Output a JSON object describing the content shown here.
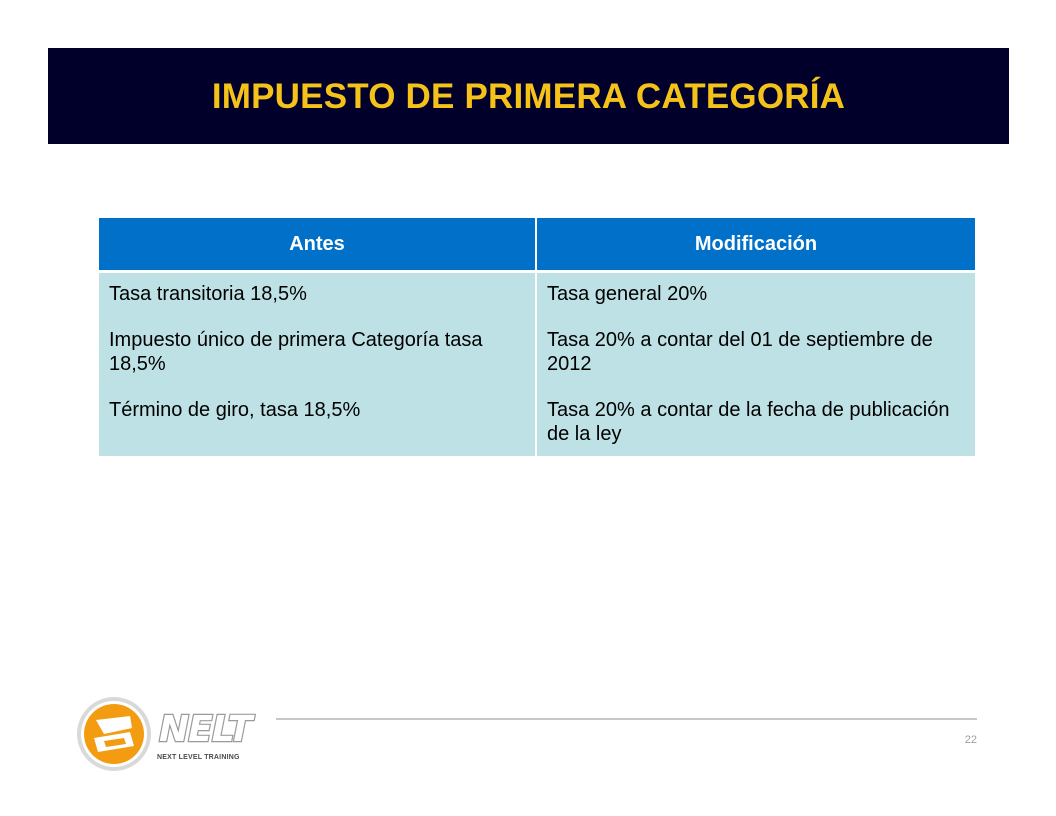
{
  "header": {
    "title": "IMPUESTO DE PRIMERA CATEGORÍA"
  },
  "table": {
    "columns": [
      "Antes",
      "Modificación"
    ],
    "rows": [
      {
        "antes": [
          "Tasa transitoria 18,5%",
          "Impuesto único de primera Categoría tasa 18,5%",
          "Término de giro, tasa 18,5%"
        ],
        "modificacion": [
          "Tasa general 20%",
          "Tasa 20% a contar del 01 de septiembre de 2012",
          "Tasa 20% a contar de la fecha de publicación de la ley"
        ]
      }
    ]
  },
  "footer": {
    "page_number": "22",
    "logo_text": "NELT",
    "logo_caption": "NEXT LEVEL TRAINING"
  },
  "colors": {
    "title_background": "#00002a",
    "title_text": "#f5c21a",
    "header_background": "#0070c8",
    "cell_background": "#bde1e4",
    "logo_orange": "#f39c12"
  }
}
